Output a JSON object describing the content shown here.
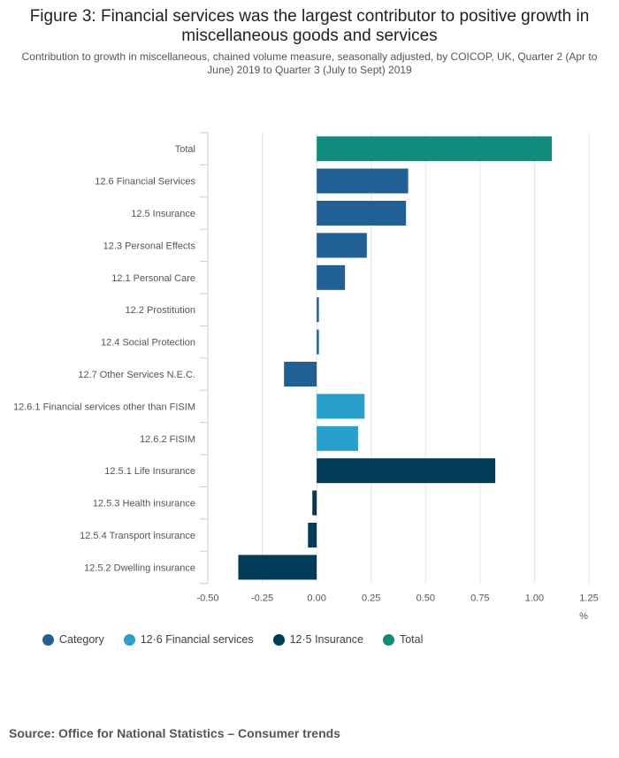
{
  "title": "Figure 3: Financial services was the largest contributor to positive growth in miscellaneous goods and services",
  "subtitle": "Contribution to growth in miscellaneous, chained volume measure, seasonally adjusted, by COICOP, UK, Quarter 2 (Apr to June) 2019 to Quarter 3 (July to Sept) 2019",
  "source": "Source: Office for National Statistics – Consumer trends",
  "colors": {
    "Category": "#206095",
    "12·6 Financial services": "#27a0cc",
    "12·5 Insurance": "#003c57",
    "Total": "#118c7b"
  },
  "legend": [
    {
      "label": "Category",
      "color": "#206095"
    },
    {
      "label": "12·6 Financial services",
      "color": "#27a0cc"
    },
    {
      "label": "12·5 Insurance",
      "color": "#003c57"
    },
    {
      "label": "Total",
      "color": "#118c7b"
    }
  ],
  "chart_data": {
    "type": "bar",
    "orientation": "horizontal",
    "title": "Figure 3: Financial services was the largest contributor to positive growth in miscellaneous goods and services",
    "xlabel": "%",
    "ylabel": "",
    "xlim": [
      -0.5,
      1.25
    ],
    "xticks": [
      -0.5,
      -0.25,
      0.0,
      0.25,
      0.5,
      0.75,
      1.0,
      1.25
    ],
    "xtick_labels": [
      "-0.50",
      "-0.25",
      "0.00",
      "0.25",
      "0.50",
      "0.75",
      "1.00",
      "1.25"
    ],
    "grid": true,
    "legend_position": "bottom-left",
    "categories": [
      "Total",
      "12.6 Financial Services",
      "12.5 Insurance",
      "12.3 Personal Effects",
      "12.1 Personal Care",
      "12.2 Prostitution",
      "12.4 Social Protection",
      "12.7 Other Services N.E.C.",
      "12.6.1 Financial services other than FISIM",
      "12.6.2 FISIM",
      "12.5.1 Life Insurance",
      "12.5.3 Health insurance",
      "12.5.4 Transport insurance",
      "12.5.2 Dwelling insurance"
    ],
    "values": [
      1.08,
      0.42,
      0.41,
      0.23,
      0.13,
      0.01,
      0.01,
      -0.15,
      0.22,
      0.19,
      0.82,
      -0.02,
      -0.04,
      -0.36
    ],
    "groups": [
      "Total",
      "Category",
      "Category",
      "Category",
      "Category",
      "Category",
      "Category",
      "Category",
      "12·6 Financial services",
      "12·6 Financial services",
      "12·5 Insurance",
      "12·5 Insurance",
      "12·5 Insurance",
      "12·5 Insurance"
    ]
  }
}
